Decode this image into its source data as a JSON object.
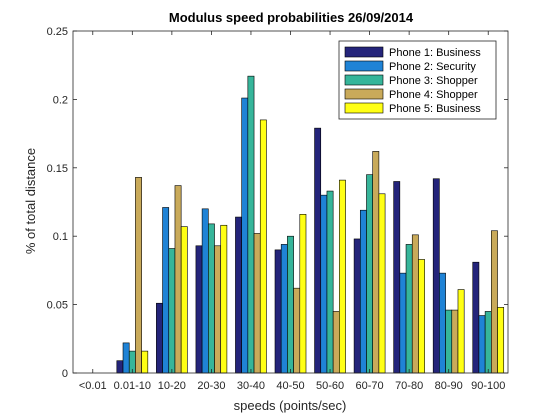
{
  "chart_data": {
    "type": "bar",
    "title": "Modulus speed probabilities 26/09/2014",
    "xlabel": "speeds (points/sec)",
    "ylabel": "% of total distance",
    "ylim": [
      0,
      0.25
    ],
    "yticks": [
      "0",
      "0.05",
      "0.1",
      "0.15",
      "0.2",
      "0.25"
    ],
    "grid": false,
    "legend_position": "top-right",
    "categories": [
      "<0.01",
      "0.01-10",
      "10-20",
      "20-30",
      "30-40",
      "40-50",
      "50-60",
      "60-70",
      "70-80",
      "80-90",
      "90-100"
    ],
    "series": [
      {
        "name": "Phone 1: Business",
        "color": "#24247a",
        "values": [
          0,
          0.009,
          0.051,
          0.093,
          0.114,
          0.09,
          0.179,
          0.098,
          0.14,
          0.142,
          0.081
        ]
      },
      {
        "name": "Phone 2: Security",
        "color": "#1f83d6",
        "values": [
          0,
          0.022,
          0.121,
          0.12,
          0.201,
          0.094,
          0.13,
          0.119,
          0.073,
          0.073,
          0.042
        ]
      },
      {
        "name": "Phone 3: Shopper",
        "color": "#36b59a",
        "values": [
          0,
          0.016,
          0.091,
          0.109,
          0.217,
          0.1,
          0.133,
          0.145,
          0.094,
          0.046,
          0.045
        ]
      },
      {
        "name": "Phone 4: Shopper",
        "color": "#c9aa5a",
        "values": [
          0,
          0.143,
          0.137,
          0.093,
          0.102,
          0.062,
          0.045,
          0.162,
          0.101,
          0.046,
          0.104
        ]
      },
      {
        "name": "Phone 5: Business",
        "color": "#ffff14",
        "values": [
          0,
          0.016,
          0.107,
          0.108,
          0.185,
          0.116,
          0.141,
          0.131,
          0.083,
          0.061,
          0.048
        ]
      }
    ]
  }
}
